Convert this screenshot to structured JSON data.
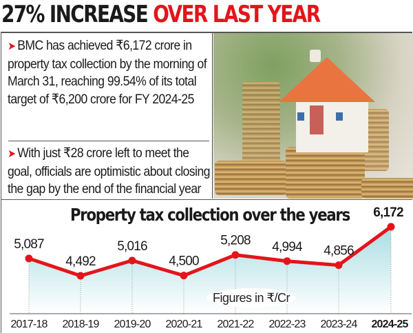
{
  "headline": {
    "part1": "27% INCREASE",
    "part2": "OVER LAST YEAR"
  },
  "bullets": [
    {
      "icon": "red-arrow-icon",
      "text": "BMC has achieved ₹6,172 crore in property tax collection by the morning of March 31, reaching 99.54% of its total target of ₹6,200 crore for FY 2024-25"
    },
    {
      "icon": "red-arrow-icon",
      "text": "With just ₹28 crore left to meet the goal, officials are optimistic about closing the gap by the end of the financial year"
    }
  ],
  "colors": {
    "accent": "#e3151b",
    "line": "#e3151b",
    "area_top": "#a9dde3",
    "area_bottom": "#ffffff",
    "text": "#1a1a1a"
  },
  "chart_data": {
    "type": "line",
    "title": "Property tax collection over the years",
    "note": "Figures in ₹/Cr",
    "categories": [
      "2017-18",
      "2018-19",
      "2019-20",
      "2020-21",
      "2021-22",
      "2022-23",
      "2023-24",
      "2024-25"
    ],
    "values": [
      5087,
      4492,
      5016,
      4500,
      5208,
      4994,
      4856,
      6172
    ],
    "data_labels": [
      "5,087",
      "4,492",
      "5,016",
      "4,500",
      "5,208",
      "4,994",
      "4,856",
      "6,172"
    ],
    "highlight_category": "2024-25",
    "area_fill": true,
    "grid": false,
    "xlabel": "",
    "ylabel": ""
  }
}
